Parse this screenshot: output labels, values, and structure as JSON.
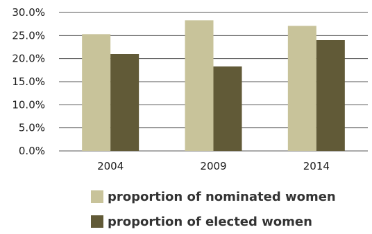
{
  "chart_data": {
    "type": "bar",
    "categories": [
      "2004",
      "2009",
      "2014"
    ],
    "series": [
      {
        "name": "proportion of nominated women",
        "color": "#c8c39a",
        "values": [
          25.3,
          28.3,
          27.1
        ]
      },
      {
        "name": "proportion of elected women",
        "color": "#615a37",
        "values": [
          21.0,
          18.3,
          24.0
        ]
      }
    ],
    "y_ticks": [
      "0.0%",
      "5.0%",
      "10.0%",
      "15.0%",
      "20.0%",
      "25.0%",
      "30.0%"
    ],
    "ylim": [
      0,
      30
    ],
    "grid": "horizontal",
    "legend_position": "bottom"
  }
}
